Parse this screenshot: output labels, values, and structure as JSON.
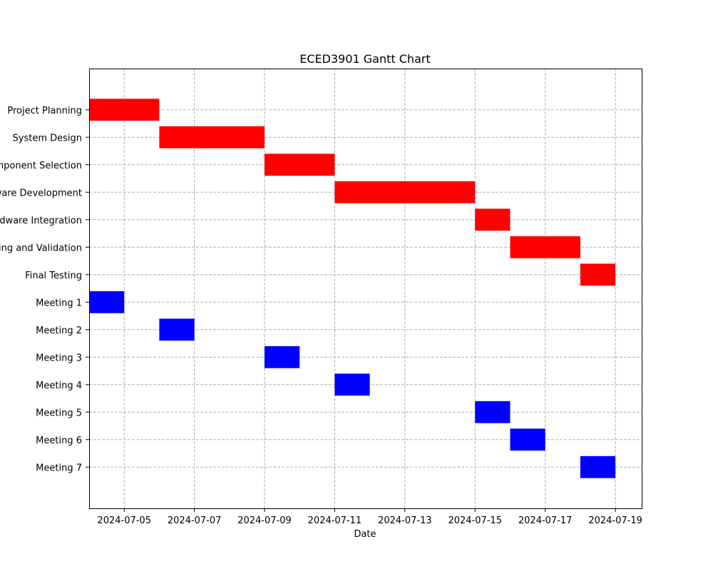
{
  "chart_data": {
    "type": "bar",
    "orientation": "horizontal",
    "title": "ECED3901 Gantt Chart",
    "xlabel": "Date",
    "ylabel": "",
    "x_type": "date",
    "xlim": [
      "2024-07-04",
      "2024-07-19T18:00"
    ],
    "xticks": [
      "2024-07-05",
      "2024-07-07",
      "2024-07-09",
      "2024-07-11",
      "2024-07-13",
      "2024-07-15",
      "2024-07-17",
      "2024-07-19"
    ],
    "grid": true,
    "colors": {
      "task": "#ff0000",
      "meeting": "#0000ff",
      "grid": "#b0b0b0"
    },
    "categories": [
      "Project Planning",
      "System Design",
      "Component Selection",
      "Software Development",
      "Hardware Integration",
      "Testing and Validation",
      "Final Testing",
      "Meeting 1",
      "Meeting 2",
      "Meeting 3",
      "Meeting 4",
      "Meeting 5",
      "Meeting 6",
      "Meeting 7"
    ],
    "tasks": [
      {
        "name": "Project Planning",
        "start": "2024-07-04",
        "end": "2024-07-06",
        "kind": "task"
      },
      {
        "name": "System Design",
        "start": "2024-07-06",
        "end": "2024-07-09",
        "kind": "task"
      },
      {
        "name": "Component Selection",
        "start": "2024-07-09",
        "end": "2024-07-11",
        "kind": "task"
      },
      {
        "name": "Software Development",
        "start": "2024-07-11",
        "end": "2024-07-15",
        "kind": "task"
      },
      {
        "name": "Hardware Integration",
        "start": "2024-07-15",
        "end": "2024-07-16",
        "kind": "task"
      },
      {
        "name": "Testing and Validation",
        "start": "2024-07-16",
        "end": "2024-07-18",
        "kind": "task"
      },
      {
        "name": "Final Testing",
        "start": "2024-07-18",
        "end": "2024-07-19",
        "kind": "task"
      },
      {
        "name": "Meeting 1",
        "start": "2024-07-04",
        "end": "2024-07-05",
        "kind": "meeting"
      },
      {
        "name": "Meeting 2",
        "start": "2024-07-06",
        "end": "2024-07-07",
        "kind": "meeting"
      },
      {
        "name": "Meeting 3",
        "start": "2024-07-09",
        "end": "2024-07-10",
        "kind": "meeting"
      },
      {
        "name": "Meeting 4",
        "start": "2024-07-11",
        "end": "2024-07-12",
        "kind": "meeting"
      },
      {
        "name": "Meeting 5",
        "start": "2024-07-15",
        "end": "2024-07-16",
        "kind": "meeting"
      },
      {
        "name": "Meeting 6",
        "start": "2024-07-16",
        "end": "2024-07-17",
        "kind": "meeting"
      },
      {
        "name": "Meeting 7",
        "start": "2024-07-18",
        "end": "2024-07-19",
        "kind": "meeting"
      }
    ]
  }
}
